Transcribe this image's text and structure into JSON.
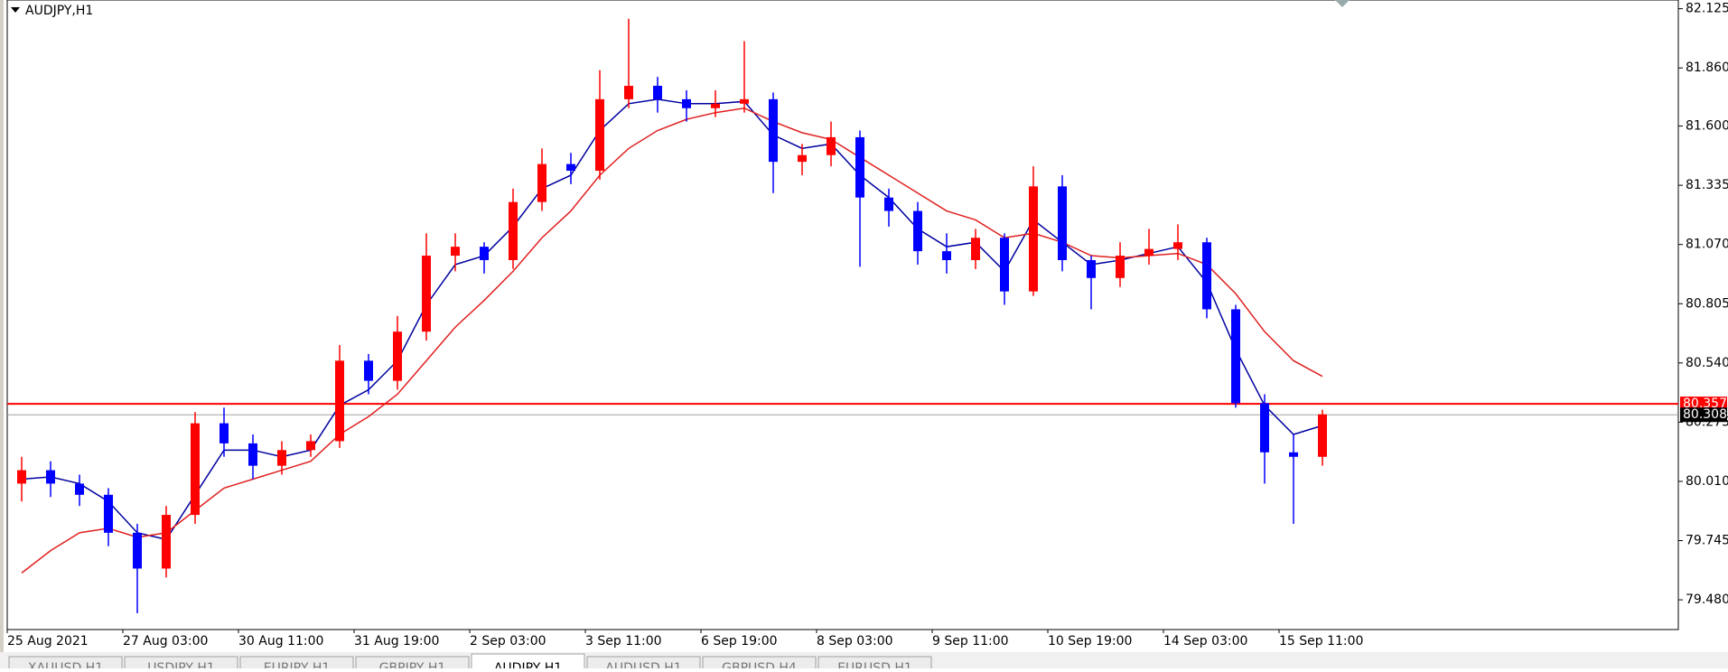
{
  "symbol_label": "AUDJPY,H1",
  "tabs": [
    "XAUUSD,H1",
    "USDJPY,H1",
    "EURJPY,H1",
    "GBPJPY,H1",
    "AUDJPY,H1",
    "AUDUSD,H1",
    "GBPUSD,H4",
    "EURUSD,H1"
  ],
  "active_tab": 4,
  "chart_data": {
    "type": "candlestick",
    "up_color": "#ff0000",
    "down_color": "#0000ff",
    "categories": [
      "25 Aug 2021",
      null,
      null,
      null,
      "27 Aug 03:00",
      null,
      null,
      null,
      "30 Aug 11:00",
      null,
      null,
      null,
      "31 Aug 19:00",
      null,
      null,
      null,
      "2 Sep 03:00",
      null,
      null,
      null,
      "3 Sep 11:00",
      null,
      null,
      null,
      "6 Sep 19:00",
      null,
      null,
      null,
      "8 Sep 03:00",
      null,
      null,
      null,
      "9 Sep 11:00",
      null,
      null,
      null,
      "10 Sep 19:00",
      null,
      null,
      null,
      "14 Sep 03:00",
      null,
      null,
      null,
      "15 Sep 11:00",
      null
    ],
    "open": [
      80.0,
      80.06,
      80.0,
      79.95,
      79.78,
      79.62,
      79.86,
      80.27,
      80.18,
      80.08,
      80.15,
      80.19,
      80.55,
      80.46,
      80.68,
      81.02,
      81.06,
      81.0,
      81.26,
      81.43,
      81.4,
      81.72,
      81.78,
      81.72,
      81.68,
      81.7,
      81.72,
      81.44,
      81.47,
      81.55,
      81.28,
      81.22,
      81.04,
      81.0,
      81.1,
      80.86,
      81.33,
      81.0,
      80.92,
      81.02,
      81.05,
      81.08,
      80.78,
      80.36,
      80.14,
      80.12
    ],
    "high": [
      80.12,
      80.1,
      80.04,
      79.98,
      79.82,
      79.9,
      80.32,
      80.34,
      80.22,
      80.19,
      80.22,
      80.62,
      80.58,
      80.75,
      81.12,
      81.12,
      81.08,
      81.32,
      81.5,
      81.48,
      81.85,
      82.08,
      81.82,
      81.76,
      81.76,
      81.98,
      81.75,
      81.52,
      81.62,
      81.58,
      81.32,
      81.26,
      81.12,
      81.14,
      81.12,
      81.42,
      81.38,
      81.02,
      81.08,
      81.14,
      81.16,
      81.1,
      80.8,
      80.4,
      80.22,
      80.33
    ],
    "low": [
      79.92,
      79.94,
      79.9,
      79.72,
      79.42,
      79.58,
      79.82,
      80.12,
      80.02,
      80.04,
      80.12,
      80.16,
      80.4,
      80.42,
      80.64,
      80.95,
      80.94,
      80.96,
      81.22,
      81.34,
      81.36,
      81.68,
      81.66,
      81.62,
      81.64,
      81.66,
      81.3,
      81.38,
      81.42,
      80.97,
      81.15,
      80.98,
      80.94,
      80.96,
      80.8,
      80.84,
      80.95,
      80.78,
      80.88,
      80.98,
      81.0,
      80.74,
      80.34,
      80.0,
      79.82,
      80.08
    ],
    "close": [
      80.06,
      80.0,
      79.95,
      79.78,
      79.62,
      79.86,
      80.27,
      80.18,
      80.08,
      80.15,
      80.19,
      80.55,
      80.46,
      80.68,
      81.02,
      81.06,
      81.0,
      81.26,
      81.43,
      81.4,
      81.72,
      81.78,
      81.72,
      81.68,
      81.7,
      81.72,
      81.44,
      81.47,
      81.55,
      81.28,
      81.22,
      81.04,
      81.0,
      81.1,
      80.86,
      81.33,
      81.0,
      80.92,
      81.02,
      81.05,
      81.08,
      80.78,
      80.36,
      80.14,
      80.12,
      80.31
    ],
    "lines": [
      {
        "color": "#0000a0",
        "values": [
          80.02,
          80.03,
          80.0,
          79.92,
          79.78,
          79.75,
          79.95,
          80.15,
          80.15,
          80.12,
          80.15,
          80.35,
          80.42,
          80.55,
          80.8,
          80.98,
          81.02,
          81.15,
          81.32,
          81.38,
          81.58,
          81.7,
          81.72,
          81.7,
          81.7,
          81.71,
          81.56,
          81.5,
          81.52,
          81.38,
          81.28,
          81.14,
          81.06,
          81.08,
          80.95,
          81.18,
          81.08,
          80.98,
          81.0,
          81.03,
          81.06,
          80.9,
          80.6,
          80.35,
          80.22,
          80.26
        ]
      },
      {
        "color": "#e02020",
        "values": [
          79.6,
          79.7,
          79.78,
          79.8,
          79.76,
          79.78,
          79.88,
          79.98,
          80.02,
          80.06,
          80.1,
          80.22,
          80.3,
          80.4,
          80.55,
          80.7,
          80.82,
          80.95,
          81.1,
          81.22,
          81.38,
          81.5,
          81.58,
          81.63,
          81.66,
          81.68,
          81.62,
          81.57,
          81.54,
          81.46,
          81.38,
          81.3,
          81.22,
          81.18,
          81.1,
          81.12,
          81.08,
          81.02,
          81.01,
          81.02,
          81.03,
          80.98,
          80.85,
          80.68,
          80.55,
          80.48
        ]
      }
    ],
    "hlines": [
      {
        "value": 80.357,
        "color": "#ff0000"
      },
      {
        "value": 80.308,
        "color": "#000000"
      }
    ],
    "ylim": [
      79.347,
      82.164
    ],
    "yticks": [
      82.125,
      {
        "value": 81.86,
        "label": "81.860"
      },
      {
        "value": 81.6,
        "label": "81.600"
      },
      81.335,
      {
        "value": 81.07,
        "label": "81.070"
      },
      80.805,
      {
        "value": 80.54,
        "label": "80.540"
      },
      80.275,
      {
        "value": 80.01,
        "label": "80.010"
      },
      79.745,
      {
        "value": 79.48,
        "label": "79.480"
      }
    ]
  }
}
